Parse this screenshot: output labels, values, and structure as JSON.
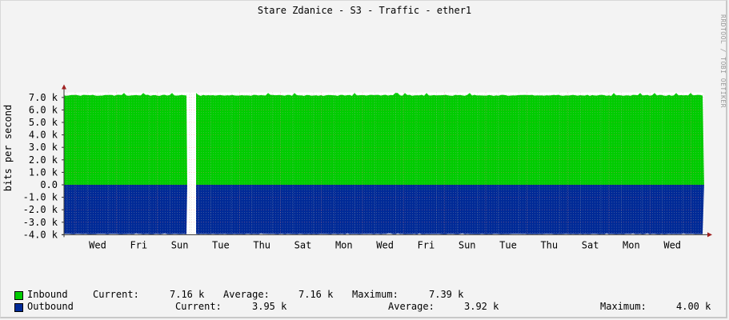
{
  "title": "Stare Zdanice - S3 - Traffic - ether1",
  "credit": "RRDTOOL / TOBI OETIKER",
  "ylabel": "bits per second",
  "legend": {
    "inbound": {
      "label": "Inbound",
      "current_label": "Current:",
      "current": "7.16 k",
      "average_label": "Average:",
      "average": "7.16 k",
      "maximum_label": "Maximum:",
      "maximum": "7.39 k",
      "color": "#00cc00"
    },
    "outbound": {
      "label": "Outbound",
      "current_label": "Current:",
      "current": "3.95 k",
      "average_label": "Average:",
      "average": "3.92 k",
      "maximum_label": "Maximum:",
      "maximum": "4.00 k",
      "color": "#002a97"
    }
  },
  "chart_data": {
    "type": "area",
    "title": "Stare Zdanice - S3 - Traffic - ether1",
    "xlabel": "",
    "ylabel": "bits per second",
    "ylim": [
      -4000,
      7300
    ],
    "yticks": [
      "7.0 k",
      "6.0 k",
      "5.0 k",
      "4.0 k",
      "3.0 k",
      "2.0 k",
      "1.0 k",
      "0.0",
      "-1.0 k",
      "-2.0 k",
      "-3.0 k",
      "-4.0 k"
    ],
    "xticks": [
      "Wed",
      "Fri",
      "Sun",
      "Tue",
      "Thu",
      "Sat",
      "Mon",
      "Wed",
      "Fri",
      "Sun",
      "Tue",
      "Thu",
      "Sat",
      "Mon",
      "Wed"
    ],
    "grid": true,
    "series": [
      {
        "name": "Inbound",
        "color": "#00cc00",
        "current": 7160,
        "average": 7160,
        "maximum": 7390,
        "approx_level": 7150
      },
      {
        "name": "Outbound",
        "color": "#002a97",
        "current": -3950,
        "average": -3920,
        "maximum": -4000,
        "approx_level": -3950
      }
    ],
    "gap": "data missing shortly after first Sun"
  }
}
